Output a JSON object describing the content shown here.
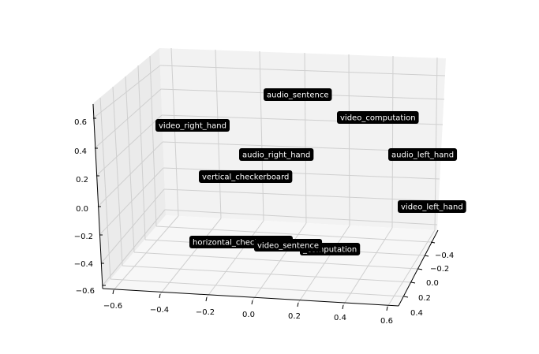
{
  "chart_data": {
    "type": "scatter",
    "projection": "3d",
    "title": "",
    "xlabel": "",
    "ylabel": "",
    "zlabel": "",
    "grid": true,
    "x_ticks": [
      "−0.6",
      "−0.4",
      "−0.2",
      "0.0",
      "0.2",
      "0.4",
      "0.6"
    ],
    "y_ticks": [
      "−0.4",
      "−0.2",
      "0.0",
      "0.2",
      "0.4"
    ],
    "z_ticks": [
      "−0.6",
      "−0.4",
      "−0.2",
      "0.0",
      "0.2",
      "0.4",
      "0.6"
    ],
    "points": [
      {
        "label": "audio_sentence"
      },
      {
        "label": "video_computation"
      },
      {
        "label": "video_right_hand"
      },
      {
        "label": "audio_right_hand"
      },
      {
        "label": "audio_left_hand"
      },
      {
        "label": "vertical_checkerboard"
      },
      {
        "label": "video_left_hand"
      },
      {
        "label": "_computation"
      },
      {
        "label": "horizontal_checkerboard"
      },
      {
        "label": "video_sentence"
      }
    ],
    "colors": {
      "label_bg": "#000000",
      "label_text": "#ffffff",
      "pane": "#f2f2f2",
      "grid": "#cfcfcf"
    }
  }
}
